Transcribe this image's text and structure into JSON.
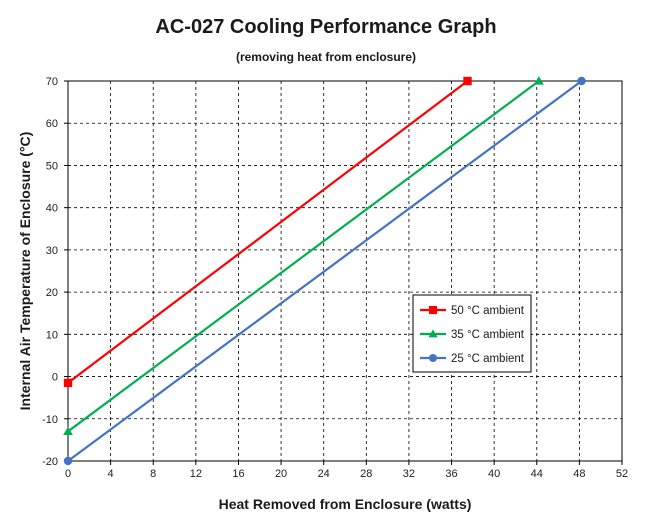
{
  "chart_data": {
    "type": "line",
    "title": "AC-027 Cooling Performance Graph",
    "subtitle": "(removing heat from enclosure)",
    "xlabel": "Heat Removed from Enclosure (watts)",
    "ylabel": "Internal Air Temperature of Enclosure (°C)",
    "xlim": [
      0,
      52
    ],
    "ylim": [
      -20,
      70
    ],
    "xticks": [
      "0",
      "4",
      "8",
      "12",
      "16",
      "20",
      "24",
      "28",
      "32",
      "36",
      "40",
      "44",
      "48",
      "52"
    ],
    "yticks": [
      "-20",
      "-10",
      "0",
      "10",
      "20",
      "30",
      "40",
      "50",
      "60",
      "70"
    ],
    "grid": true,
    "legend_position": "lower-right",
    "series": [
      {
        "name": "50 °C ambient",
        "color": "#ff0000",
        "marker": "square",
        "x": [
          0,
          37.5
        ],
        "y": [
          -1.5,
          70
        ]
      },
      {
        "name": "35 °C ambient",
        "color": "#00b050",
        "marker": "triangle",
        "x": [
          0,
          44.2
        ],
        "y": [
          -13,
          70
        ]
      },
      {
        "name": "25 °C ambient",
        "color": "#4472c4",
        "marker": "circle",
        "x": [
          0,
          48.2
        ],
        "y": [
          -20,
          70
        ]
      }
    ]
  }
}
